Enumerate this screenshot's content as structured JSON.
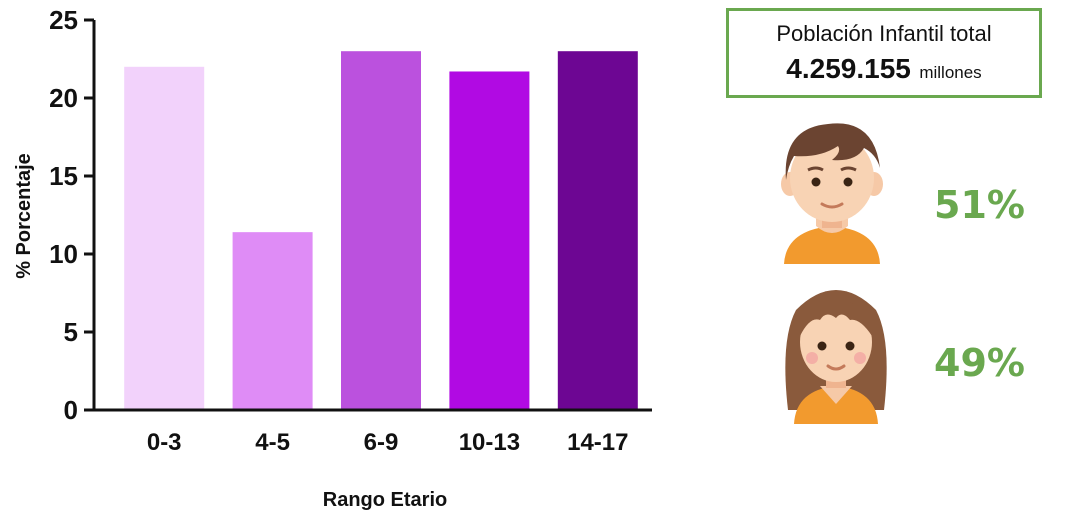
{
  "chart_data": {
    "type": "bar",
    "categories": [
      "0-3",
      "4-5",
      "6-9",
      "10-13",
      "14-17"
    ],
    "values": [
      22.0,
      11.4,
      23.0,
      21.7,
      23.0
    ],
    "colors": [
      "#f2d2fb",
      "#df8cf6",
      "#bb51de",
      "#b10ae3",
      "#6d0693"
    ],
    "xlabel": "Rango Etario",
    "ylabel": "% Porcentaje",
    "ylim": [
      0,
      25
    ],
    "yticks": [
      0,
      5,
      10,
      15,
      20,
      25
    ],
    "grid": false
  },
  "summary": {
    "title": "Población Infantil total",
    "value": "4.259.155",
    "unit": "millones",
    "border_color": "#6aa84f"
  },
  "gender": {
    "boy": {
      "icon": "boy-avatar-icon",
      "percent": "51%"
    },
    "girl": {
      "icon": "girl-avatar-icon",
      "percent": "49%"
    }
  }
}
